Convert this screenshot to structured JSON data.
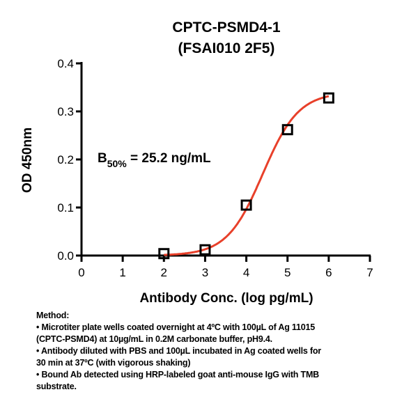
{
  "chart_data": {
    "type": "scatter",
    "title": [
      "CPTC-PSMD4-1",
      "(FSAI010 2F5)"
    ],
    "xlabel": "Antibody Conc. (log pg/mL)",
    "ylabel": "OD 450nm",
    "xlim": [
      0,
      7
    ],
    "ylim": [
      0,
      0.4
    ],
    "xticks": [
      "0",
      "1",
      "2",
      "3",
      "4",
      "5",
      "6",
      "7"
    ],
    "yticks": [
      "0.0",
      "0.1",
      "0.2",
      "0.3",
      "0.4"
    ],
    "grid": false,
    "points": {
      "x": [
        2,
        3,
        4,
        5,
        6
      ],
      "y": [
        0.004,
        0.012,
        0.105,
        0.262,
        0.328
      ],
      "marker": "open-square",
      "color": "#000000"
    },
    "fit": {
      "model": "sigmoidal dose-response",
      "bottom": 0,
      "top": 0.34,
      "logEC50": 4.4,
      "hill": 1,
      "x_range": [
        2,
        6
      ],
      "color": "#e8402a"
    },
    "annotation": {
      "main": "B",
      "sub": "50%",
      "rest": " = 25.2 ng/mL"
    }
  },
  "method": {
    "heading": "Method:",
    "lines": [
      "• Microtiter plate wells coated overnight at 4ºC  with 100µL of Ag 11015",
      "(CPTC-PSMD4) at 10µg/mL in 0.2M carbonate buffer, pH9.4.",
      "• Antibody diluted with PBS and 100µL incubated in Ag coated wells for",
      "30 min at 37ºC (with vigorous shaking)",
      "• Bound Ab detected using HRP-labeled goat anti-mouse IgG with TMB",
      "substrate."
    ]
  }
}
